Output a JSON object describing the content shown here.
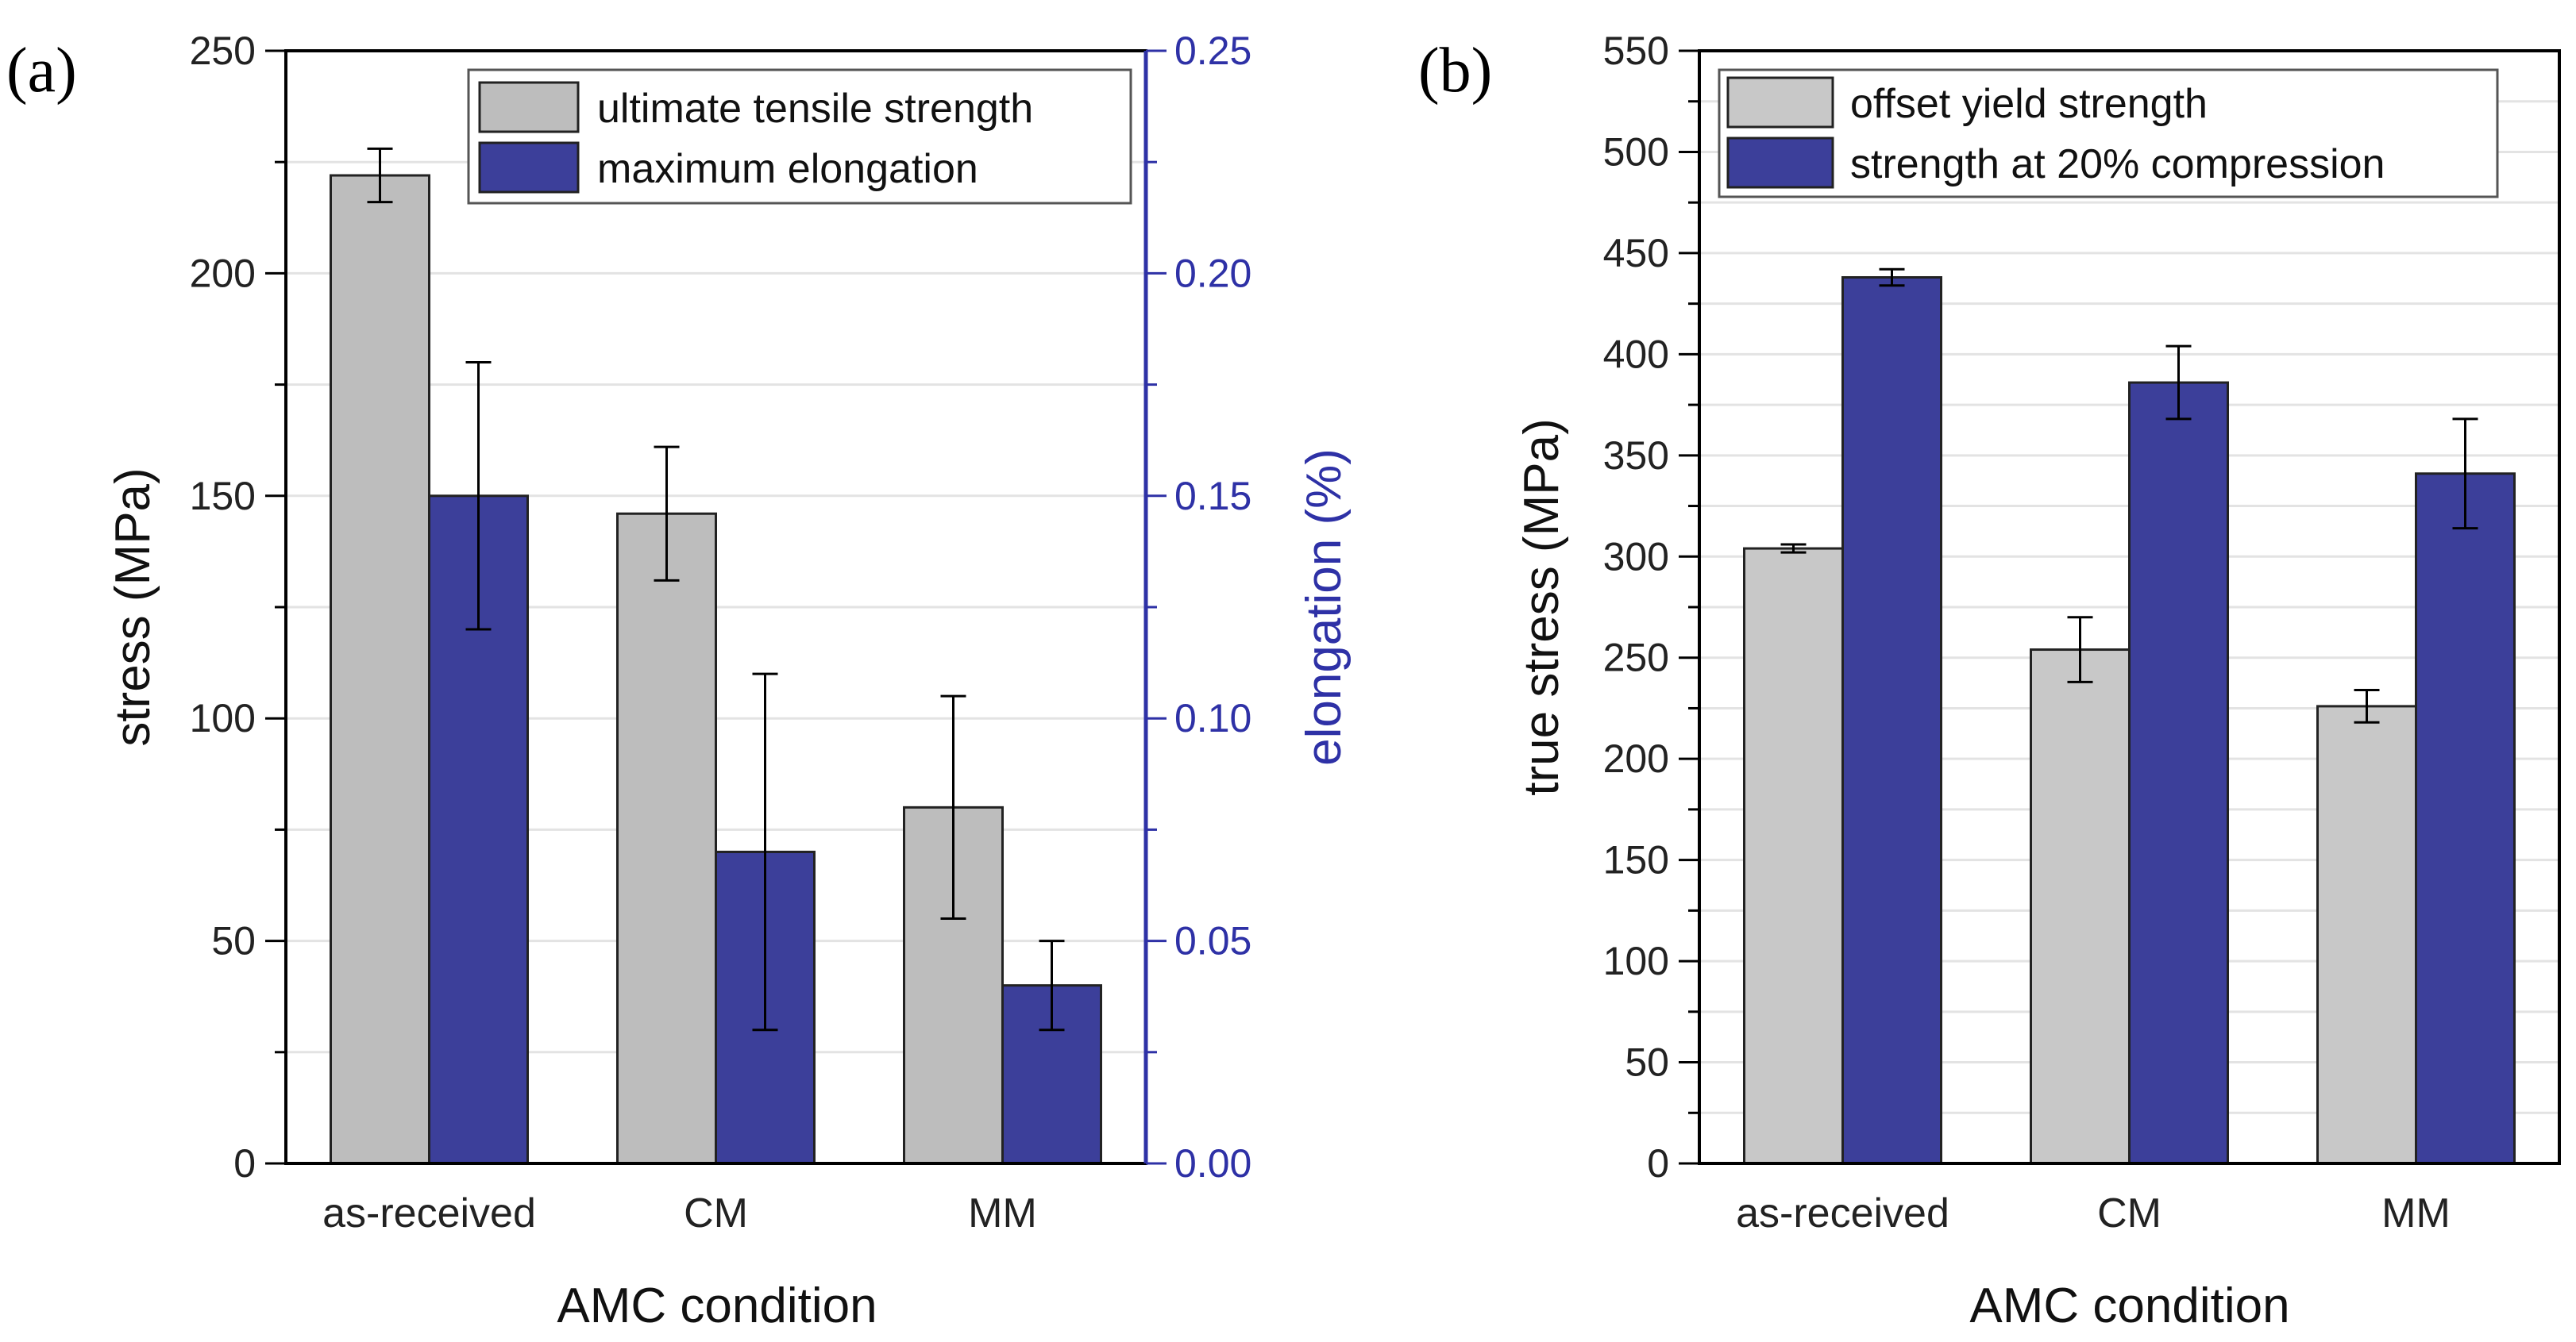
{
  "chart_data": [
    {
      "panel": "(a)",
      "type": "bar",
      "categories": [
        "as-received",
        "CM",
        "MM"
      ],
      "xlabel": "AMC condition",
      "ylabel": "stress (MPa)",
      "ylabel_right": "elongation (%)",
      "ylim": [
        0,
        250
      ],
      "ylim_right": [
        0,
        0.25
      ],
      "yticks": [
        "0",
        "50",
        "100",
        "150",
        "200",
        "250"
      ],
      "yticks_right": [
        "0.00",
        "0.05",
        "0.10",
        "0.15",
        "0.20",
        "0.25"
      ],
      "grid": true,
      "legend_position": "top-right",
      "series": [
        {
          "name": "ultimate tensile strength",
          "axis": "left",
          "color": "#bdbdbd",
          "values": [
            222,
            146,
            80
          ],
          "errors": [
            6,
            15,
            25
          ]
        },
        {
          "name": "maximum elongation",
          "axis": "right",
          "color": "#3c3f9a",
          "values": [
            0.15,
            0.07,
            0.04
          ],
          "errors": [
            0.03,
            0.04,
            0.01
          ]
        }
      ]
    },
    {
      "panel": "(b)",
      "type": "bar",
      "categories": [
        "as-received",
        "CM",
        "MM"
      ],
      "xlabel": "AMC condition",
      "ylabel": "true stress (MPa)",
      "ylim": [
        0,
        550
      ],
      "yticks": [
        "0",
        "50",
        "100",
        "150",
        "200",
        "250",
        "300",
        "350",
        "400",
        "450",
        "500",
        "550"
      ],
      "grid": true,
      "legend_position": "top-left",
      "series": [
        {
          "name": "offset yield strength",
          "axis": "left",
          "color": "#c8c8c8",
          "values": [
            304,
            254,
            226
          ],
          "errors": [
            2,
            16,
            8
          ]
        },
        {
          "name": "strength at 20% compression",
          "axis": "left",
          "color": "#3c3f9a",
          "values": [
            438,
            386,
            341
          ],
          "errors": [
            4,
            18,
            27
          ]
        }
      ]
    }
  ],
  "colors": {
    "right_axis": "#2e31a6",
    "grid": "#e3e3e3"
  }
}
